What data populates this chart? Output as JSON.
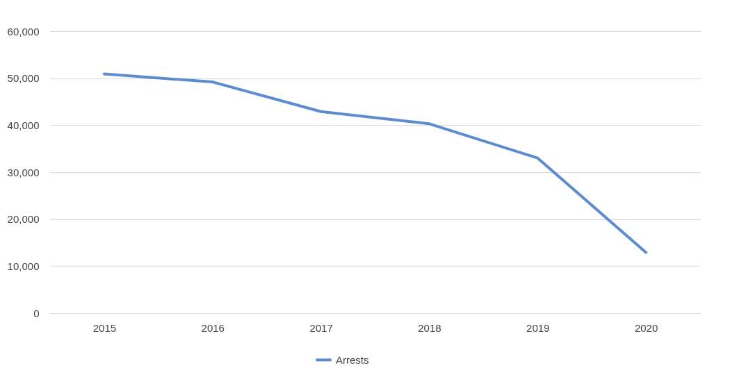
{
  "chart_data": {
    "type": "line",
    "categories": [
      "2015",
      "2016",
      "2017",
      "2018",
      "2019",
      "2020"
    ],
    "series": [
      {
        "name": "Arrests",
        "color": "#5b8bd0",
        "values": [
          50900,
          49200,
          42900,
          40300,
          33000,
          12900
        ]
      }
    ],
    "ylim": [
      0,
      60000
    ],
    "yticks": [
      {
        "value": 0,
        "label": "0"
      },
      {
        "value": 10000,
        "label": "10,000"
      },
      {
        "value": 20000,
        "label": "20,000"
      },
      {
        "value": 30000,
        "label": "30,000"
      },
      {
        "value": 40000,
        "label": "40,000"
      },
      {
        "value": 50000,
        "label": "50,000"
      },
      {
        "value": 60000,
        "label": "60,000"
      }
    ],
    "grid": "y",
    "legend": "bottom",
    "marker": "none",
    "line_style": "solid"
  }
}
